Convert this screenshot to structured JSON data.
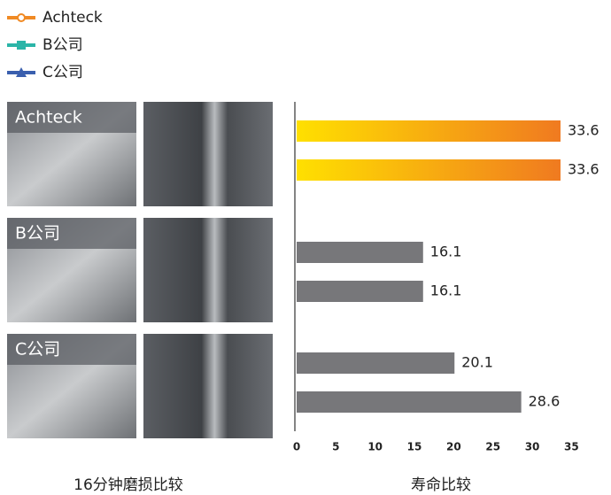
{
  "chart_data": {
    "type": "bar",
    "orientation": "horizontal",
    "series": [
      {
        "name": "Achteck",
        "color": "#f08a24",
        "marker": "circle",
        "fill": [
          "#ffe000",
          "#f07a20"
        ],
        "values": [
          33.6,
          33.6
        ]
      },
      {
        "name": "B公司",
        "color": "#2bb5a8",
        "marker": "square",
        "fill": [
          "#77777a"
        ],
        "values": [
          16.1,
          16.1
        ]
      },
      {
        "name": "C公司",
        "color": "#3a5fae",
        "marker": "triangle",
        "fill": [
          "#77777a"
        ],
        "values": [
          20.1,
          28.6
        ]
      }
    ],
    "xlim": [
      0,
      38
    ],
    "xticks": [
      0,
      5,
      10,
      15,
      20,
      25,
      30,
      35
    ],
    "grid": false,
    "xlabel": "寿命比较",
    "image_caption": "16分钟磨损比较"
  }
}
